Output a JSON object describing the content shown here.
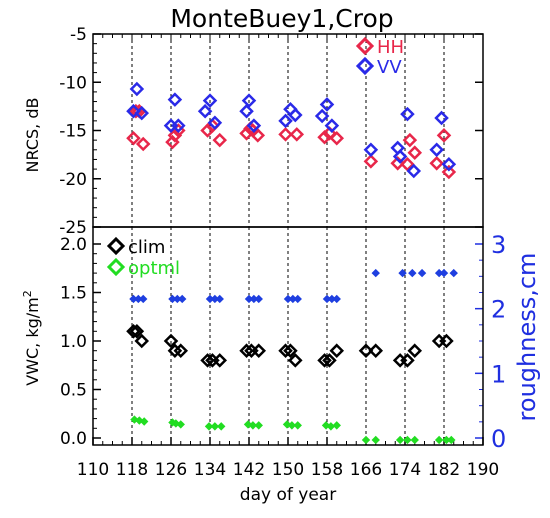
{
  "chart_data": [
    {
      "type": "scatter",
      "title": "MonteBuey1,Crop",
      "ylabel": "NRCS, dB",
      "xlim": [
        110,
        190
      ],
      "ylim": [
        -25,
        -5
      ],
      "yticks": [
        "-5",
        "-10",
        "-15",
        "-20",
        "-25"
      ],
      "dashed_vlines": [
        118,
        126,
        134,
        142,
        150,
        158,
        166,
        174,
        182
      ],
      "legend_position": "top-right",
      "series": [
        {
          "name": "HH",
          "color": "#e8274a",
          "marker": "diamond-open",
          "points": [
            [
              118.3,
              -15.8
            ],
            [
              118.8,
              -13.0
            ],
            [
              119.5,
              -13.0
            ],
            [
              120.3,
              -16.4
            ],
            [
              126.3,
              -16.2
            ],
            [
              126.8,
              -15.5
            ],
            [
              127.5,
              -15.0
            ],
            [
              133.5,
              -15.0
            ],
            [
              134.5,
              -14.5
            ],
            [
              136.0,
              -16.0
            ],
            [
              141.5,
              -15.3
            ],
            [
              142.3,
              -14.8
            ],
            [
              142.8,
              -15.0
            ],
            [
              143.8,
              -15.5
            ],
            [
              149.5,
              -15.4
            ],
            [
              151.8,
              -15.4
            ],
            [
              157.5,
              -15.7
            ],
            [
              158.5,
              -15.3
            ],
            [
              160.0,
              -15.8
            ],
            [
              167.0,
              -18.2
            ],
            [
              172.5,
              -18.4
            ],
            [
              174.5,
              -18.5
            ],
            [
              175.0,
              -16.0
            ],
            [
              176.0,
              -17.3
            ],
            [
              180.5,
              -18.4
            ],
            [
              182.0,
              -15.5
            ],
            [
              183.0,
              -19.3
            ]
          ]
        },
        {
          "name": "VV",
          "color": "#2a2ae8",
          "marker": "diamond-open",
          "points": [
            [
              118.3,
              -13.0
            ],
            [
              119.0,
              -10.7
            ],
            [
              120.0,
              -13.2
            ],
            [
              126.0,
              -14.5
            ],
            [
              126.8,
              -11.8
            ],
            [
              127.5,
              -14.5
            ],
            [
              133.0,
              -13.0
            ],
            [
              134.0,
              -11.9
            ],
            [
              135.0,
              -14.2
            ],
            [
              141.5,
              -13.0
            ],
            [
              142.0,
              -11.9
            ],
            [
              143.0,
              -14.5
            ],
            [
              149.5,
              -14.0
            ],
            [
              150.5,
              -12.8
            ],
            [
              151.5,
              -13.4
            ],
            [
              157.0,
              -13.5
            ],
            [
              158.0,
              -12.3
            ],
            [
              159.0,
              -14.5
            ],
            [
              167.0,
              -17.0
            ],
            [
              172.5,
              -16.8
            ],
            [
              173.0,
              -17.7
            ],
            [
              174.5,
              -13.3
            ],
            [
              175.8,
              -19.2
            ],
            [
              180.5,
              -17.0
            ],
            [
              181.5,
              -13.7
            ],
            [
              183.0,
              -18.5
            ]
          ]
        }
      ]
    },
    {
      "type": "scatter",
      "xlabel": "day of year",
      "ylabel": "VWC, kg/m",
      "ylabel_superscript": "2",
      "y2label": "roughness,cm",
      "xlim": [
        110,
        190
      ],
      "ylim": [
        0,
        2
      ],
      "y2lim": [
        0,
        3
      ],
      "xticks": [
        "110",
        "118",
        "126",
        "134",
        "142",
        "150",
        "158",
        "166",
        "174",
        "182",
        "190"
      ],
      "yticks": [
        "0.0",
        "0.5",
        "1.0",
        "1.5",
        "2.0"
      ],
      "y2ticks": [
        "0",
        "1",
        "2",
        "3"
      ],
      "dashed_vlines": [
        118,
        126,
        134,
        142,
        150,
        158,
        166,
        174,
        182
      ],
      "legend_position": "top-left",
      "series": [
        {
          "name": "clim",
          "color": "#000000",
          "marker": "diamond-open",
          "axis": "left",
          "points": [
            [
              118.3,
              1.1
            ],
            [
              119.0,
              1.1
            ],
            [
              120.0,
              1.0
            ],
            [
              126.0,
              1.0
            ],
            [
              126.8,
              0.9
            ],
            [
              128.0,
              0.9
            ],
            [
              133.5,
              0.8
            ],
            [
              134.5,
              0.8
            ],
            [
              136.0,
              0.8
            ],
            [
              141.5,
              0.9
            ],
            [
              142.5,
              0.9
            ],
            [
              144.0,
              0.9
            ],
            [
              149.5,
              0.9
            ],
            [
              150.5,
              0.9
            ],
            [
              151.5,
              0.8
            ],
            [
              157.5,
              0.8
            ],
            [
              158.5,
              0.8
            ],
            [
              160.0,
              0.9
            ],
            [
              166.0,
              0.9
            ],
            [
              168.0,
              0.9
            ],
            [
              173.0,
              0.8
            ],
            [
              174.5,
              0.8
            ],
            [
              176.0,
              0.9
            ],
            [
              181.0,
              1.0
            ],
            [
              182.5,
              1.0
            ]
          ]
        },
        {
          "name": "optml",
          "color": "#22dd22",
          "marker": "diamond-filled-small",
          "axis": "left",
          "points": [
            [
              118.5,
              0.19
            ],
            [
              119.5,
              0.18
            ],
            [
              120.5,
              0.17
            ],
            [
              126.3,
              0.16
            ],
            [
              127.0,
              0.15
            ],
            [
              128.0,
              0.14
            ],
            [
              133.8,
              0.12
            ],
            [
              135.0,
              0.12
            ],
            [
              136.3,
              0.12
            ],
            [
              141.8,
              0.14
            ],
            [
              142.8,
              0.13
            ],
            [
              144.0,
              0.13
            ],
            [
              149.8,
              0.14
            ],
            [
              150.8,
              0.13
            ],
            [
              152.0,
              0.13
            ],
            [
              157.8,
              0.13
            ],
            [
              158.8,
              0.12
            ],
            [
              160.0,
              0.13
            ],
            [
              166.0,
              -0.02
            ],
            [
              168.0,
              -0.02
            ],
            [
              173.0,
              -0.02
            ],
            [
              174.5,
              -0.02
            ],
            [
              176.0,
              -0.02
            ],
            [
              181.0,
              -0.02
            ],
            [
              182.5,
              -0.02
            ],
            [
              183.5,
              -0.02
            ]
          ]
        },
        {
          "name": "roughness",
          "color": "#1f3fe0",
          "marker": "diamond-filled-small",
          "axis": "right",
          "points": [
            [
              118.3,
              2.15
            ],
            [
              119.3,
              2.15
            ],
            [
              120.3,
              2.15
            ],
            [
              126.3,
              2.15
            ],
            [
              127.3,
              2.15
            ],
            [
              128.3,
              2.15
            ],
            [
              134.0,
              2.15
            ],
            [
              135.0,
              2.15
            ],
            [
              136.0,
              2.15
            ],
            [
              142.0,
              2.15
            ],
            [
              143.0,
              2.15
            ],
            [
              144.0,
              2.15
            ],
            [
              150.0,
              2.15
            ],
            [
              151.0,
              2.15
            ],
            [
              152.0,
              2.15
            ],
            [
              158.0,
              2.15
            ],
            [
              159.0,
              2.15
            ],
            [
              160.0,
              2.15
            ],
            [
              168.0,
              2.55
            ],
            [
              173.5,
              2.55
            ],
            [
              175.5,
              2.55
            ],
            [
              177.5,
              2.55
            ],
            [
              181.0,
              2.55
            ],
            [
              182.0,
              2.55
            ],
            [
              184.0,
              2.55
            ]
          ]
        }
      ]
    }
  ]
}
